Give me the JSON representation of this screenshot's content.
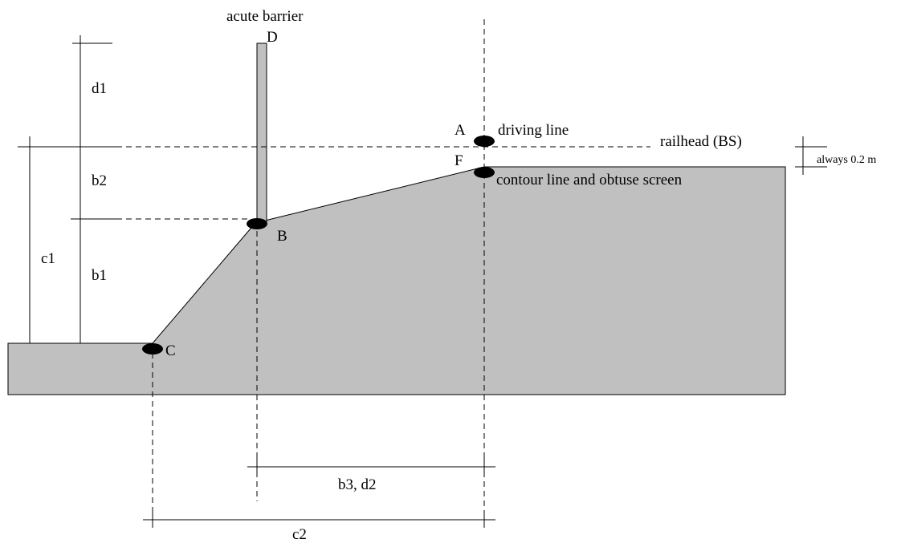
{
  "labels": {
    "acute_barrier": "acute barrier",
    "point_d": "D",
    "point_a": "A",
    "driving_line": "driving line",
    "railhead": "railhead (BS)",
    "point_f": "F",
    "contour_line": "contour line and obtuse screen",
    "always": "always 0.2 m",
    "point_b": "B",
    "point_c": "C",
    "d1": "d1",
    "b2": "b2",
    "b1": "b1",
    "c1": "c1",
    "b3_d2": "b3, d2",
    "c2": "c2"
  },
  "colors": {
    "fill": "#c0c0c0",
    "stroke": "#000000",
    "point": "#000000"
  }
}
